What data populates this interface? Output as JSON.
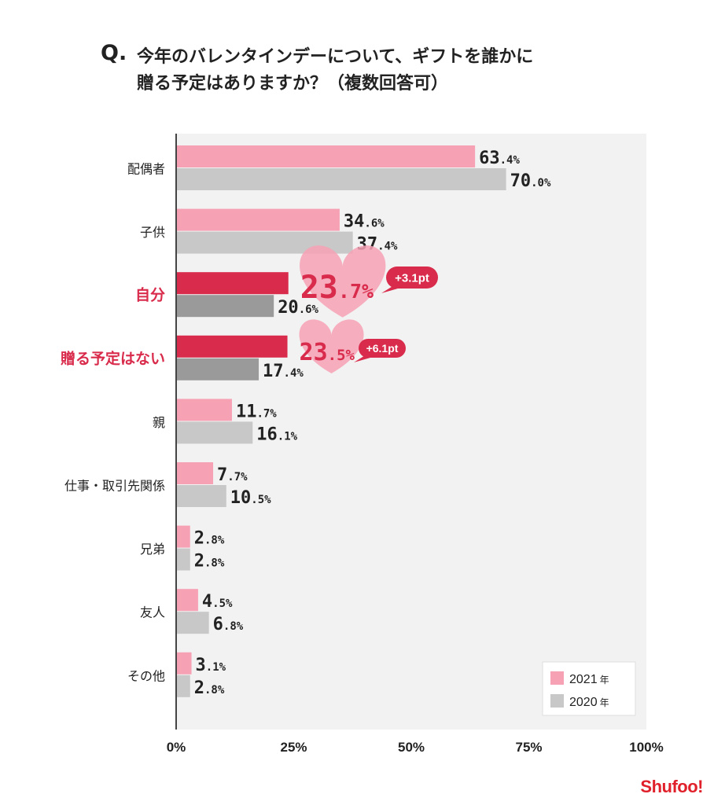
{
  "title": {
    "q": "Q.",
    "line1": "今年のバレンタインデーについて、ギフトを誰かに",
    "line2": "贈る予定はありますか？（複数回答可）"
  },
  "chart_data": {
    "type": "bar",
    "orientation": "horizontal",
    "categories": [
      "配偶者",
      "子供",
      "自分",
      "贈る予定はない",
      "親",
      "仕事・取引先関係",
      "兄弟",
      "友人",
      "その他"
    ],
    "highlight_categories": [
      "自分",
      "贈る予定はない"
    ],
    "series": [
      {
        "name": "2021年",
        "values": [
          63.4,
          34.6,
          23.7,
          23.5,
          11.7,
          7.7,
          2.8,
          4.5,
          3.1
        ]
      },
      {
        "name": "2020年",
        "values": [
          70.0,
          37.4,
          20.6,
          17.4,
          16.1,
          10.5,
          2.8,
          6.8,
          2.8
        ]
      }
    ],
    "value_labels": {
      "2021年": [
        "63.4%",
        "34.6%",
        "23.7%",
        "23.5%",
        "11.7%",
        "7.7%",
        "2.8%",
        "4.5%",
        "3.1%"
      ],
      "2020年": [
        "70.0%",
        "37.4%",
        "20.6%",
        "17.4%",
        "16.1%",
        "10.5%",
        "2.8%",
        "6.8%",
        "2.8%"
      ]
    },
    "annotations": [
      {
        "category": "自分",
        "text": "+3.1pt"
      },
      {
        "category": "贈る予定はない",
        "text": "+6.1pt"
      }
    ],
    "xlim": [
      0,
      100
    ],
    "xticks": [
      0,
      25,
      50,
      75,
      100
    ],
    "xtick_labels": [
      "0%",
      "25%",
      "50%",
      "75%",
      "100%"
    ],
    "legend": {
      "position": "bottom-right",
      "labels": [
        "2021",
        "2020"
      ],
      "suffix": "年"
    },
    "colors": {
      "pink": "#f7a1b5",
      "gray": "#c8c8c8",
      "highlight_red": "#d92b4b",
      "highlight_gray": "#9a9a9a",
      "plot_bg": "#f2f2f2",
      "value_text": "#222222",
      "highlight_text": "#d92b4b"
    }
  },
  "logo": "Shufoo!"
}
